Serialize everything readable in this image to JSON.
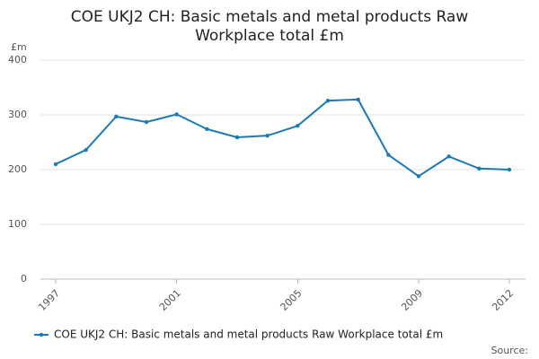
{
  "chart_data": {
    "type": "line",
    "title": [
      "COE UKJ2 CH: Basic metals and metal products Raw",
      "Workplace total £m"
    ],
    "y_label": "£m",
    "source": "Source:",
    "x": [
      1997,
      1998,
      1999,
      2000,
      2001,
      2002,
      2003,
      2004,
      2005,
      2006,
      2007,
      2008,
      2009,
      2010,
      2011,
      2012
    ],
    "series": [
      {
        "name": "COE UKJ2 CH: Basic metals and metal products Raw Workplace total £m",
        "color": "#1a7ab8",
        "values": [
          210,
          236,
          297,
          287,
          301,
          274,
          259,
          262,
          280,
          326,
          328,
          227,
          188,
          224,
          202,
          200
        ]
      }
    ],
    "xlim": [
      1997,
      2012
    ],
    "xticks": [
      1997,
      2001,
      2005,
      2009,
      2012
    ],
    "ylim": [
      0,
      400
    ],
    "yticks": [
      0,
      100,
      200,
      300,
      400
    ],
    "grid": true
  }
}
